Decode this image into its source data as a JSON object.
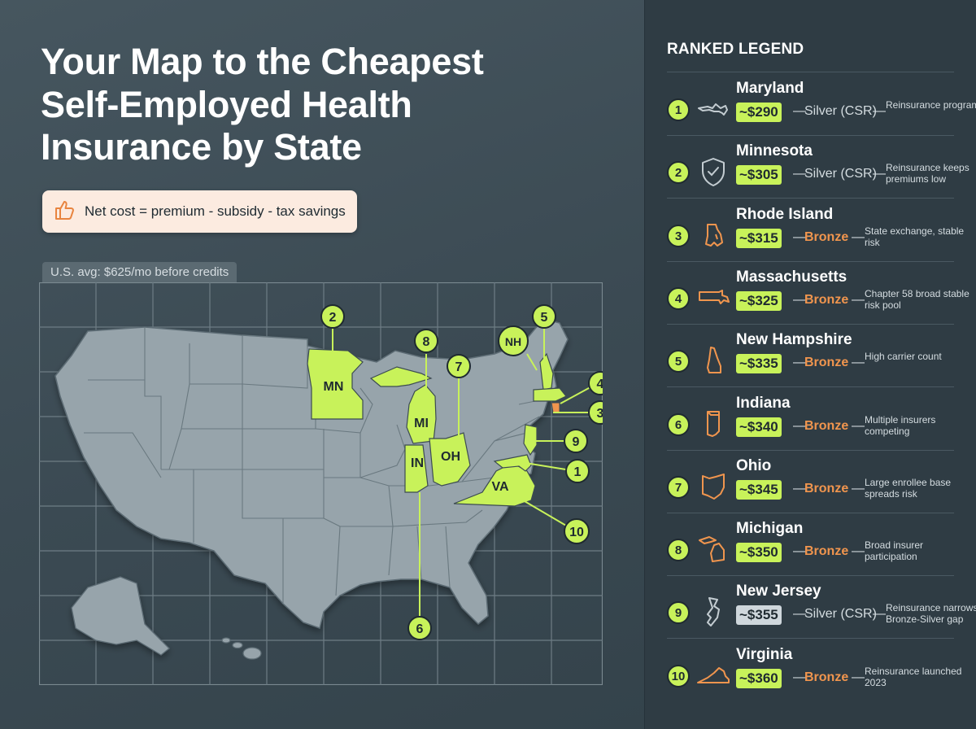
{
  "title_lines": [
    "Your Map to the Cheapest",
    "Self-Employed Health",
    "Insurance by State"
  ],
  "callout": {
    "icon": "thumbs-up-icon",
    "text": "Net cost = premium - subsidy - tax savings"
  },
  "map": {
    "avg_label": "U.S. avg: $625/mo before credits",
    "highlight_color": "#c8f25a",
    "state_labels": [
      "MN",
      "MI",
      "NH",
      "OH",
      "IN",
      "VA"
    ],
    "badges": [
      "1",
      "2",
      "3",
      "4",
      "5",
      "6",
      "7",
      "8",
      "9",
      "10"
    ]
  },
  "legend": {
    "title": "RANKED LEGEND",
    "accent": "#c8f25a",
    "bronze_color": "#f0954e",
    "items": [
      {
        "rank": "1",
        "state": "Maryland",
        "price": "~$290",
        "tier": "Silver (CSR)",
        "note": "Reinsurance program",
        "icon": "maryland-outline-icon"
      },
      {
        "rank": "2",
        "state": "Minnesota",
        "price": "~$305",
        "tier": "Silver (CSR)",
        "note": "Reinsurance keeps premiums low",
        "icon": "shield-check-icon"
      },
      {
        "rank": "3",
        "state": "Rhode Island",
        "price": "~$315",
        "tier": "Bronze",
        "note": "State exchange, stable risk",
        "icon": "rhode-island-outline-icon"
      },
      {
        "rank": "4",
        "state": "Massachusetts",
        "price": "~$325",
        "tier": "Bronze",
        "note": "Chapter 58 broad stable risk pool",
        "icon": "massachusetts-outline-icon"
      },
      {
        "rank": "5",
        "state": "New Hampshire",
        "price": "~$335",
        "tier": "Bronze",
        "note": "High carrier count",
        "icon": "new-hampshire-outline-icon"
      },
      {
        "rank": "6",
        "state": "Indiana",
        "price": "~$340",
        "tier": "Bronze",
        "note": "Multiple insurers competing",
        "icon": "indiana-outline-icon"
      },
      {
        "rank": "7",
        "state": "Ohio",
        "price": "~$345",
        "tier": "Bronze",
        "note": "Large enrollee base spreads risk",
        "icon": "ohio-outline-icon"
      },
      {
        "rank": "8",
        "state": "Michigan",
        "price": "~$350",
        "tier": "Bronze",
        "note": "Broad insurer participation",
        "icon": "michigan-outline-icon"
      },
      {
        "rank": "9",
        "state": "New Jersey",
        "price": "~$355",
        "tier": "Silver (CSR)",
        "note": "Reinsurance narrows Bronze-Silver gap",
        "icon": "new-jersey-outline-icon"
      },
      {
        "rank": "10",
        "state": "Virginia",
        "price": "~$360",
        "tier": "Bronze",
        "note": "Reinsurance launched 2023",
        "icon": "virginia-outline-icon"
      }
    ]
  }
}
